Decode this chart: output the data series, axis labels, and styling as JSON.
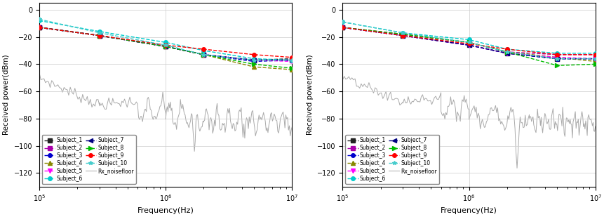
{
  "freqs": [
    100000.0,
    300000.0,
    1000000.0,
    2000000.0,
    5000000.0,
    10000000.0
  ],
  "left_data": {
    "Subject_1": [
      -13,
      -19,
      -27,
      -33,
      -37,
      -36
    ],
    "Subject_2": [
      -13,
      -19,
      -27,
      -33,
      -37,
      -37
    ],
    "Subject_3": [
      -13,
      -19,
      -27,
      -33,
      -38,
      -37
    ],
    "Subject_4": [
      -13,
      -19,
      -27,
      -33,
      -42,
      -44
    ],
    "Subject_5": [
      -13,
      -19,
      -27,
      -33,
      -37,
      -38
    ],
    "Subject_6": [
      -8,
      -16,
      -24,
      -30,
      -36,
      -37
    ],
    "Subject_7": [
      -13,
      -19,
      -27,
      -33,
      -37,
      -37
    ],
    "Subject_8": [
      -13,
      -19,
      -27,
      -33,
      -40,
      -43
    ],
    "Subject_9": [
      -13,
      -19,
      -26,
      -29,
      -33,
      -35
    ],
    "Subject_10": [
      -7,
      -17,
      -26,
      -33,
      -37,
      -37
    ]
  },
  "right_data": {
    "Subject_1": [
      -13,
      -19,
      -26,
      -32,
      -36,
      -36
    ],
    "Subject_2": [
      -13,
      -18,
      -24,
      -31,
      -33,
      -33
    ],
    "Subject_3": [
      -13,
      -19,
      -26,
      -32,
      -36,
      -36
    ],
    "Subject_4": [
      -13,
      -18,
      -24,
      -31,
      -35,
      -38
    ],
    "Subject_5": [
      -13,
      -19,
      -26,
      -32,
      -35,
      -36
    ],
    "Subject_6": [
      -9,
      -17,
      -22,
      -29,
      -32,
      -32
    ],
    "Subject_7": [
      -13,
      -19,
      -26,
      -32,
      -36,
      -36
    ],
    "Subject_8": [
      -13,
      -18,
      -24,
      -31,
      -41,
      -40
    ],
    "Subject_9": [
      -13,
      -19,
      -25,
      -29,
      -33,
      -33
    ],
    "Subject_10": [
      -9,
      -17,
      -24,
      -31,
      -36,
      -36
    ]
  },
  "subject_styles": {
    "Subject_1": {
      "color": "#222222",
      "marker": "s",
      "linestyle": "--"
    },
    "Subject_2": {
      "color": "#AA00AA",
      "marker": "s",
      "linestyle": "--"
    },
    "Subject_3": {
      "color": "#0000CC",
      "marker": "o",
      "linestyle": "--"
    },
    "Subject_4": {
      "color": "#888800",
      "marker": "^",
      "linestyle": "--"
    },
    "Subject_5": {
      "color": "#FF00FF",
      "marker": "v",
      "linestyle": "--"
    },
    "Subject_6": {
      "color": "#00CCCC",
      "marker": "o",
      "linestyle": "--"
    },
    "Subject_7": {
      "color": "#000080",
      "marker": "<",
      "linestyle": "--"
    },
    "Subject_8": {
      "color": "#00BB00",
      "marker": ">",
      "linestyle": "--"
    },
    "Subject_9": {
      "color": "#FF0000",
      "marker": "o",
      "linestyle": "--"
    },
    "Subject_10": {
      "color": "#44CCCC",
      "marker": "*",
      "linestyle": "--"
    }
  },
  "ylabel": "Received power(dBm)",
  "xlabel": "Frequency(Hz)",
  "ylim": [
    -130,
    5
  ],
  "yticks": [
    0,
    -20,
    -40,
    -60,
    -80,
    -100,
    -120
  ],
  "xlim": [
    100000.0,
    10000000.0
  ],
  "noise_color": "#AAAAAA",
  "background_color": "#FFFFFF",
  "grid_color": "#CCCCCC"
}
